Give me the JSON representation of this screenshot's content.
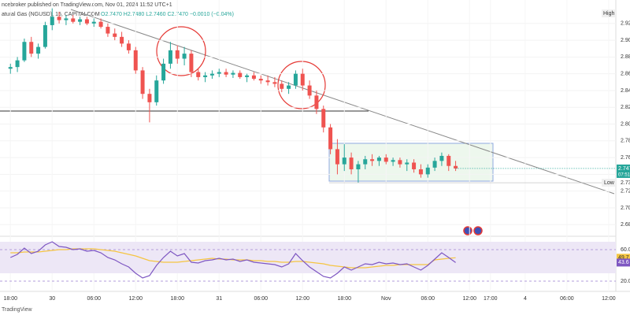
{
  "chart_data": {
    "type": "candlestick",
    "published": "ncebroker published on TradingView.com, Nov 01, 2024 11:52 UTC+1",
    "title": "atural Gas (NGUSD), 15, CAPITALCOM",
    "ohlc_text": "O2.7470 H2.7480 L2.7460 C2.7470 −0.0010 (−0.04%)",
    "high_label": "High",
    "low_label": "Low",
    "countdown": "07:51",
    "brand": "TradingView",
    "up_color": "#26a69a",
    "down_color": "#ef5350",
    "xlim": [
      -1.5,
      88.5
    ],
    "xticks": [
      {
        "value": 0,
        "label": "18:00"
      },
      {
        "value": 6,
        "label": "30"
      },
      {
        "value": 12,
        "label": "06:00"
      },
      {
        "value": 18,
        "label": "12:00"
      },
      {
        "value": 24,
        "label": "18:00"
      },
      {
        "value": 30,
        "label": "31"
      },
      {
        "value": 36,
        "label": "06:00"
      },
      {
        "value": 42,
        "label": "12:00"
      },
      {
        "value": 48,
        "label": "18:00"
      },
      {
        "value": 54,
        "label": "Nov"
      },
      {
        "value": 60,
        "label": "06:00"
      },
      {
        "value": 66,
        "label": "12:00"
      },
      {
        "value": 69,
        "label": "17:00"
      },
      {
        "value": 74,
        "label": "4"
      },
      {
        "value": 80,
        "label": "06:00"
      },
      {
        "value": 86,
        "label": "12:00"
      }
    ],
    "ylim": [
      2.668,
      2.948
    ],
    "yticks": [
      2.92,
      {
        "value": 2.9,
        "label": "2.90"
      },
      2.88,
      2.86,
      2.84,
      2.82,
      {
        "value": 2.8,
        "label": "2.80"
      },
      2.78,
      2.76,
      2.74,
      2.72,
      {
        "value": 2.7,
        "label": "2.70"
      },
      2.68
    ],
    "open": [
      2.866,
      2.868,
      2.876,
      2.898,
      2.884,
      2.892,
      2.918,
      2.928,
      2.924,
      2.926,
      2.922,
      2.925,
      2.92,
      2.922,
      2.916,
      2.908,
      2.904,
      2.896,
      2.888,
      2.864,
      2.836,
      2.826,
      2.852,
      2.872,
      2.888,
      2.878,
      2.884,
      2.862,
      2.856,
      2.858,
      2.86,
      2.862,
      2.859,
      2.861,
      2.856,
      2.858,
      2.854,
      2.852,
      2.85,
      2.848,
      2.842,
      2.846,
      2.86,
      2.846,
      2.834,
      2.818,
      2.796,
      2.77,
      2.752,
      2.76,
      2.746,
      2.752,
      2.758,
      2.756,
      2.76,
      2.755,
      2.757,
      2.752,
      2.754,
      2.746,
      2.74,
      2.748,
      2.756,
      2.762,
      2.75
    ],
    "high": [
      2.872,
      2.88,
      2.902,
      2.904,
      2.896,
      2.922,
      2.938,
      2.934,
      2.93,
      2.93,
      2.928,
      2.928,
      2.926,
      2.926,
      2.92,
      2.914,
      2.91,
      2.9,
      2.892,
      2.868,
      2.842,
      2.858,
      2.878,
      2.898,
      2.894,
      2.892,
      2.888,
      2.866,
      2.862,
      2.864,
      2.866,
      2.866,
      2.864,
      2.864,
      2.86,
      2.862,
      2.858,
      2.858,
      2.856,
      2.852,
      2.85,
      2.864,
      2.866,
      2.852,
      2.84,
      2.822,
      2.8,
      2.782,
      2.776,
      2.766,
      2.756,
      2.762,
      2.764,
      2.762,
      2.764,
      2.76,
      2.76,
      2.758,
      2.758,
      2.752,
      2.752,
      2.76,
      2.766,
      2.764,
      2.756
    ],
    "low": [
      2.86,
      2.862,
      2.874,
      2.88,
      2.878,
      2.89,
      2.912,
      2.92,
      2.918,
      2.92,
      2.918,
      2.918,
      2.916,
      2.914,
      2.904,
      2.9,
      2.892,
      2.884,
      2.86,
      2.83,
      2.802,
      2.822,
      2.848,
      2.866,
      2.872,
      2.87,
      2.856,
      2.852,
      2.85,
      2.854,
      2.856,
      2.856,
      2.855,
      2.854,
      2.85,
      2.852,
      2.848,
      2.846,
      2.844,
      2.838,
      2.836,
      2.842,
      2.84,
      2.83,
      2.812,
      2.79,
      2.764,
      2.74,
      2.744,
      2.74,
      2.73,
      2.746,
      2.75,
      2.75,
      2.752,
      2.75,
      2.748,
      2.744,
      2.742,
      2.736,
      2.736,
      2.744,
      2.75,
      2.744,
      2.744
    ],
    "close": [
      2.868,
      2.876,
      2.898,
      2.884,
      2.892,
      2.918,
      2.928,
      2.924,
      2.926,
      2.922,
      2.925,
      2.92,
      2.922,
      2.916,
      2.908,
      2.904,
      2.896,
      2.888,
      2.864,
      2.836,
      2.826,
      2.852,
      2.872,
      2.888,
      2.878,
      2.884,
      2.862,
      2.856,
      2.858,
      2.86,
      2.862,
      2.859,
      2.861,
      2.856,
      2.858,
      2.854,
      2.852,
      2.85,
      2.848,
      2.842,
      2.846,
      2.86,
      2.846,
      2.834,
      2.818,
      2.796,
      2.77,
      2.752,
      2.76,
      2.746,
      2.752,
      2.758,
      2.756,
      2.76,
      2.755,
      2.757,
      2.752,
      2.754,
      2.746,
      2.74,
      2.748,
      2.756,
      2.762,
      2.75,
      2.747
    ],
    "rsi": {
      "color": "#7e57c2",
      "ma_color": "#f5c542",
      "band_color": "#ede7f6",
      "ylim": [
        9,
        77
      ],
      "band": [
        30,
        70
      ],
      "yticks": [
        {
          "value": 60,
          "label": "60.00"
        },
        {
          "value": 20,
          "label": "20.00"
        }
      ],
      "values": [
        50,
        54,
        62,
        55,
        58,
        66,
        70,
        64,
        63,
        60,
        61,
        58,
        59,
        56,
        50,
        47,
        42,
        38,
        30,
        24,
        27,
        40,
        50,
        58,
        52,
        55,
        44,
        43,
        46,
        47,
        49,
        47,
        48,
        45,
        47,
        44,
        43,
        42,
        41,
        38,
        42,
        55,
        46,
        38,
        32,
        26,
        24,
        30,
        38,
        34,
        38,
        42,
        41,
        44,
        42,
        43,
        41,
        42,
        38,
        34,
        40,
        48,
        56,
        50,
        43.6
      ],
      "ma": [
        56,
        56,
        57,
        57,
        57,
        58,
        59,
        60,
        60,
        61,
        61,
        61,
        61,
        60,
        59,
        58,
        56,
        54,
        52,
        49,
        46,
        45,
        44,
        44,
        44,
        45,
        46,
        47,
        48,
        49,
        48,
        48,
        47,
        47,
        47,
        46,
        46,
        45,
        45,
        44,
        44,
        45,
        45,
        44,
        43,
        42,
        40,
        39,
        38,
        37,
        37,
        37,
        38,
        39,
        40,
        40,
        41,
        41,
        41,
        41,
        41,
        47,
        48,
        49,
        49.7
      ]
    }
  }
}
